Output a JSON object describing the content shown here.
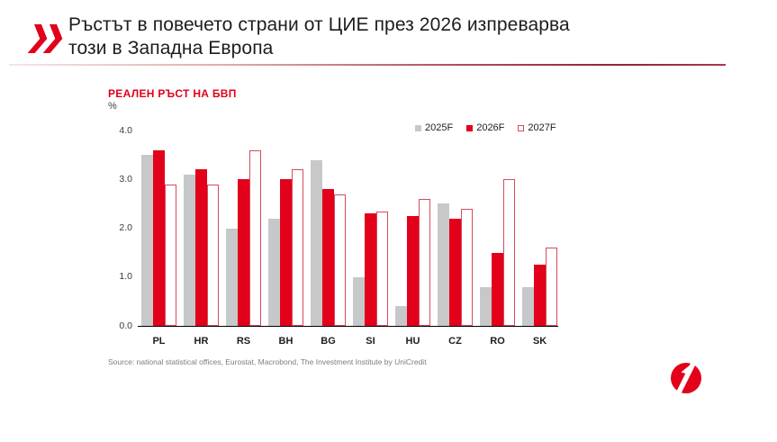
{
  "header": {
    "title_line1": "Ръстът в повечето страни от ЦИЕ през 2026 изпреварва",
    "title_line2": "този в Западна Европа",
    "accent_color": "#e2001a"
  },
  "chart": {
    "title": "РЕАЛЕН РЪСТ НА БВП",
    "unit": "%"
  },
  "chart_data": {
    "type": "bar",
    "title": "РЕАЛЕН РЪСТ НА БВП",
    "ylabel": "%",
    "ylim": [
      0,
      4
    ],
    "ytick_labels": [
      "0.0",
      "1.0",
      "2.0",
      "3.0",
      "4.0"
    ],
    "grid": false,
    "legend_position": "top-right",
    "categories": [
      "PL",
      "HR",
      "RS",
      "BH",
      "BG",
      "SI",
      "HU",
      "CZ",
      "RO",
      "SK"
    ],
    "series": [
      {
        "name": "2025F",
        "color": "#c7c8c9",
        "values": [
          3.5,
          3.1,
          2.0,
          2.2,
          3.4,
          1.0,
          0.4,
          2.5,
          0.8,
          0.8
        ]
      },
      {
        "name": "2026F",
        "color": "#e2001a",
        "values": [
          3.6,
          3.2,
          3.0,
          3.0,
          2.8,
          2.3,
          2.25,
          2.2,
          1.5,
          1.25
        ]
      },
      {
        "name": "2027F",
        "color": "#ffffff",
        "border_color": "#d64b5e",
        "values": [
          2.9,
          2.9,
          3.6,
          3.2,
          2.7,
          2.35,
          2.6,
          2.4,
          3.0,
          1.6
        ]
      }
    ]
  },
  "footer": {
    "source": "Source: national statistical offices, Eurostat, Macrobond, The Investment Institute by UniCredit"
  }
}
